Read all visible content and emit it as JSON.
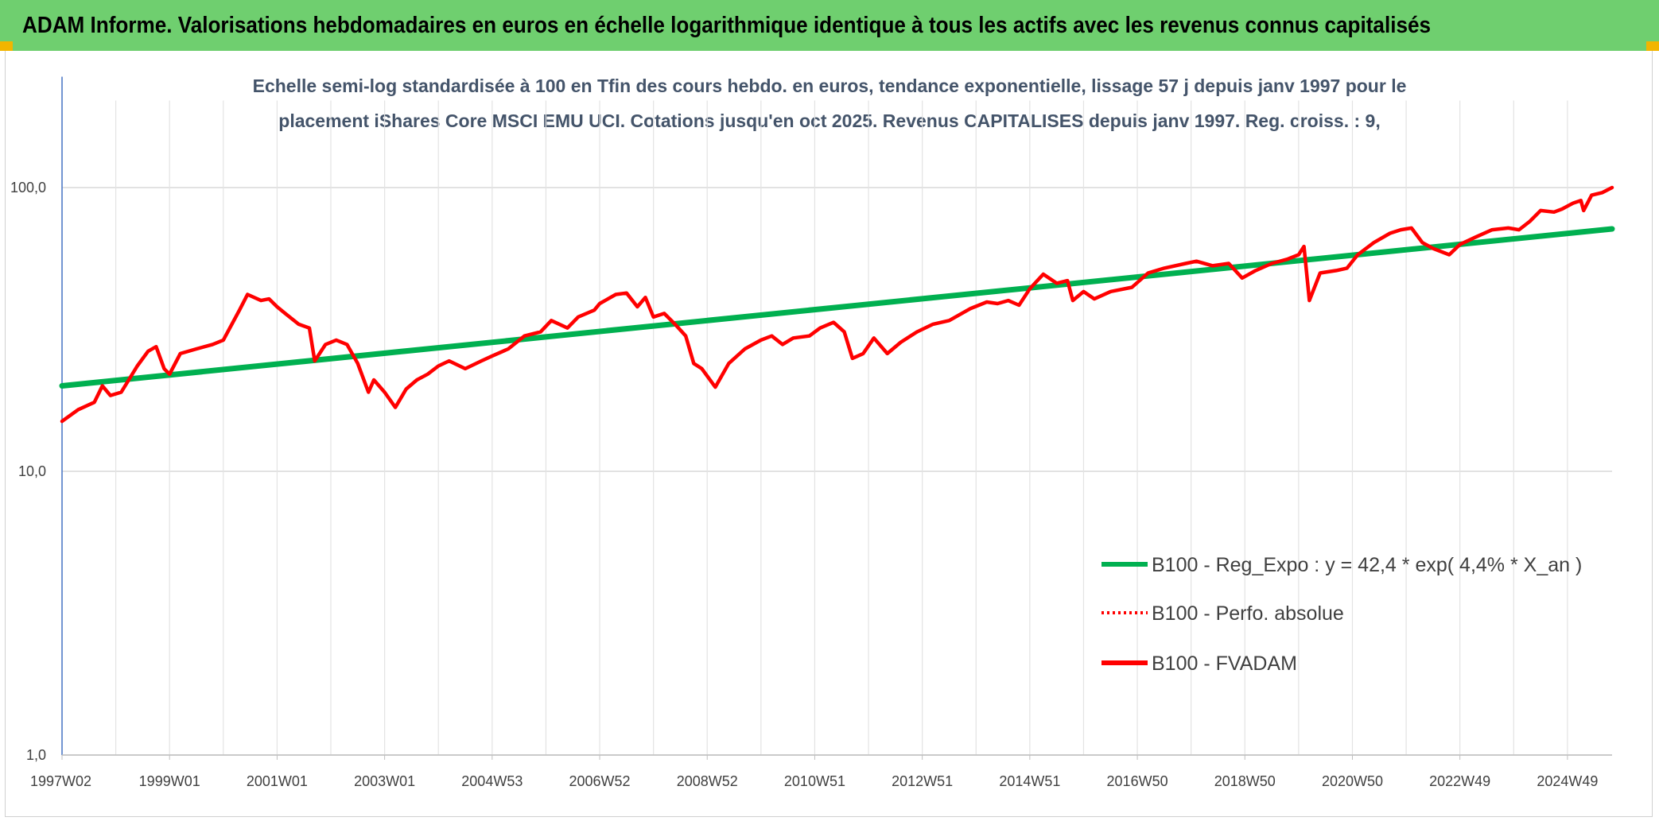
{
  "header": {
    "title": "ADAM Informe. Valorisations hebdomadaires en euros en échelle logarithmique identique à tous les actifs avec les revenus connus capitalisés"
  },
  "chart_data": {
    "type": "line",
    "title_line1": "Echelle semi-log standardisée à 100 en Tfin des cours hebdo. en euros, tendance exponentielle, lissage 57 j depuis janv 1997 pour le",
    "title_line2": "placement iShares Core MSCI EMU UCI. Cotations jusqu'en oct 2025. Revenus CAPITALISES depuis janv 1997. Reg. croiss. : 9,",
    "y_scale": "log",
    "ylim": [
      1,
      200
    ],
    "y_ticks": [
      {
        "value": 1,
        "label": "1,0"
      },
      {
        "value": 10,
        "label": "10,0"
      },
      {
        "value": 100,
        "label": "100,0"
      }
    ],
    "xlim": [
      1997.0,
      2025.83
    ],
    "x_ticks": [
      {
        "value": 1997.0,
        "label": "1997W02"
      },
      {
        "value": 1999.0,
        "label": "1999W01"
      },
      {
        "value": 2001.0,
        "label": "2001W01"
      },
      {
        "value": 2003.0,
        "label": "2003W01"
      },
      {
        "value": 2005.0,
        "label": "2004W53"
      },
      {
        "value": 2007.0,
        "label": "2006W52"
      },
      {
        "value": 2009.0,
        "label": "2008W52"
      },
      {
        "value": 2011.0,
        "label": "2010W51"
      },
      {
        "value": 2013.0,
        "label": "2012W51"
      },
      {
        "value": 2015.0,
        "label": "2014W51"
      },
      {
        "value": 2017.0,
        "label": "2016W50"
      },
      {
        "value": 2019.0,
        "label": "2018W50"
      },
      {
        "value": 2021.0,
        "label": "2020W50"
      },
      {
        "value": 2023.0,
        "label": "2022W49"
      },
      {
        "value": 2025.0,
        "label": "2024W49"
      }
    ],
    "grid": true,
    "legend_position": "bottom-right",
    "series": [
      {
        "name": "B100 - Reg_Expo : y = 42,4 * exp( 4,4% * X_an )",
        "color": "#00b050",
        "style": "solid",
        "points": [
          [
            1997.0,
            20.0
          ],
          [
            2025.83,
            71.5
          ]
        ]
      },
      {
        "name": "B100 - Perfo. absolue",
        "color": "#ff0000",
        "style": "dotted",
        "points": []
      },
      {
        "name": "B100 - FVADAM",
        "color": "#ff0000",
        "style": "solid",
        "points": [
          [
            1997.0,
            15.0
          ],
          [
            1997.3,
            16.5
          ],
          [
            1997.6,
            17.5
          ],
          [
            1997.75,
            20.0
          ],
          [
            1997.9,
            18.5
          ],
          [
            1998.1,
            19.0
          ],
          [
            1998.4,
            23.5
          ],
          [
            1998.6,
            26.5
          ],
          [
            1998.75,
            27.5
          ],
          [
            1998.9,
            23.0
          ],
          [
            1999.0,
            22.0
          ],
          [
            1999.2,
            26.0
          ],
          [
            1999.5,
            27.0
          ],
          [
            1999.8,
            28.0
          ],
          [
            2000.0,
            29.0
          ],
          [
            2000.3,
            37.0
          ],
          [
            2000.45,
            42.0
          ],
          [
            2000.7,
            40.0
          ],
          [
            2000.85,
            40.5
          ],
          [
            2001.0,
            38.0
          ],
          [
            2001.15,
            36.0
          ],
          [
            2001.4,
            33.0
          ],
          [
            2001.6,
            32.0
          ],
          [
            2001.7,
            24.5
          ],
          [
            2001.9,
            28.0
          ],
          [
            2002.1,
            29.0
          ],
          [
            2002.3,
            28.0
          ],
          [
            2002.5,
            24.0
          ],
          [
            2002.7,
            19.0
          ],
          [
            2002.8,
            21.0
          ],
          [
            2003.0,
            19.0
          ],
          [
            2003.2,
            16.8
          ],
          [
            2003.4,
            19.5
          ],
          [
            2003.6,
            21.0
          ],
          [
            2003.8,
            22.0
          ],
          [
            2004.0,
            23.5
          ],
          [
            2004.2,
            24.5
          ],
          [
            2004.5,
            23.0
          ],
          [
            2004.8,
            24.5
          ],
          [
            2005.0,
            25.5
          ],
          [
            2005.3,
            27.0
          ],
          [
            2005.6,
            30.0
          ],
          [
            2005.9,
            31.0
          ],
          [
            2006.1,
            34.0
          ],
          [
            2006.4,
            32.0
          ],
          [
            2006.6,
            35.0
          ],
          [
            2006.9,
            37.0
          ],
          [
            2007.0,
            39.0
          ],
          [
            2007.3,
            42.0
          ],
          [
            2007.5,
            42.5
          ],
          [
            2007.7,
            38.0
          ],
          [
            2007.85,
            41.0
          ],
          [
            2008.0,
            35.0
          ],
          [
            2008.2,
            36.0
          ],
          [
            2008.4,
            33.0
          ],
          [
            2008.6,
            30.0
          ],
          [
            2008.75,
            24.0
          ],
          [
            2008.9,
            23.0
          ],
          [
            2009.15,
            19.8
          ],
          [
            2009.4,
            24.0
          ],
          [
            2009.7,
            27.0
          ],
          [
            2010.0,
            29.0
          ],
          [
            2010.2,
            30.0
          ],
          [
            2010.4,
            28.0
          ],
          [
            2010.6,
            29.5
          ],
          [
            2010.9,
            30.0
          ],
          [
            2011.1,
            32.0
          ],
          [
            2011.35,
            33.5
          ],
          [
            2011.55,
            31.0
          ],
          [
            2011.7,
            25.0
          ],
          [
            2011.9,
            26.0
          ],
          [
            2012.1,
            29.5
          ],
          [
            2012.35,
            26.0
          ],
          [
            2012.6,
            28.5
          ],
          [
            2012.9,
            31.0
          ],
          [
            2013.2,
            33.0
          ],
          [
            2013.5,
            34.0
          ],
          [
            2013.9,
            37.5
          ],
          [
            2014.2,
            39.5
          ],
          [
            2014.4,
            39.0
          ],
          [
            2014.6,
            40.0
          ],
          [
            2014.8,
            38.5
          ],
          [
            2015.0,
            44.0
          ],
          [
            2015.25,
            49.5
          ],
          [
            2015.5,
            46.0
          ],
          [
            2015.7,
            47.0
          ],
          [
            2015.8,
            40.0
          ],
          [
            2016.0,
            43.0
          ],
          [
            2016.2,
            40.5
          ],
          [
            2016.5,
            43.0
          ],
          [
            2016.9,
            44.5
          ],
          [
            2017.2,
            50.0
          ],
          [
            2017.5,
            52.0
          ],
          [
            2017.9,
            54.0
          ],
          [
            2018.1,
            55.0
          ],
          [
            2018.4,
            53.0
          ],
          [
            2018.7,
            54.0
          ],
          [
            2018.95,
            48.0
          ],
          [
            2019.2,
            51.0
          ],
          [
            2019.5,
            54.0
          ],
          [
            2019.8,
            56.0
          ],
          [
            2020.0,
            58.0
          ],
          [
            2020.1,
            62.0
          ],
          [
            2020.2,
            40.0
          ],
          [
            2020.4,
            50.0
          ],
          [
            2020.7,
            51.0
          ],
          [
            2020.9,
            52.0
          ],
          [
            2021.1,
            58.0
          ],
          [
            2021.4,
            64.0
          ],
          [
            2021.7,
            69.0
          ],
          [
            2021.9,
            71.0
          ],
          [
            2022.1,
            72.0
          ],
          [
            2022.3,
            64.0
          ],
          [
            2022.5,
            61.0
          ],
          [
            2022.8,
            58.0
          ],
          [
            2023.0,
            63.0
          ],
          [
            2023.3,
            67.0
          ],
          [
            2023.6,
            71.0
          ],
          [
            2023.9,
            72.0
          ],
          [
            2024.1,
            71.0
          ],
          [
            2024.3,
            76.0
          ],
          [
            2024.5,
            83.0
          ],
          [
            2024.75,
            82.0
          ],
          [
            2024.9,
            84.0
          ],
          [
            2025.1,
            88.0
          ],
          [
            2025.25,
            90.0
          ],
          [
            2025.3,
            83.0
          ],
          [
            2025.45,
            94.0
          ],
          [
            2025.65,
            96.0
          ],
          [
            2025.83,
            100.0
          ]
        ]
      }
    ]
  }
}
